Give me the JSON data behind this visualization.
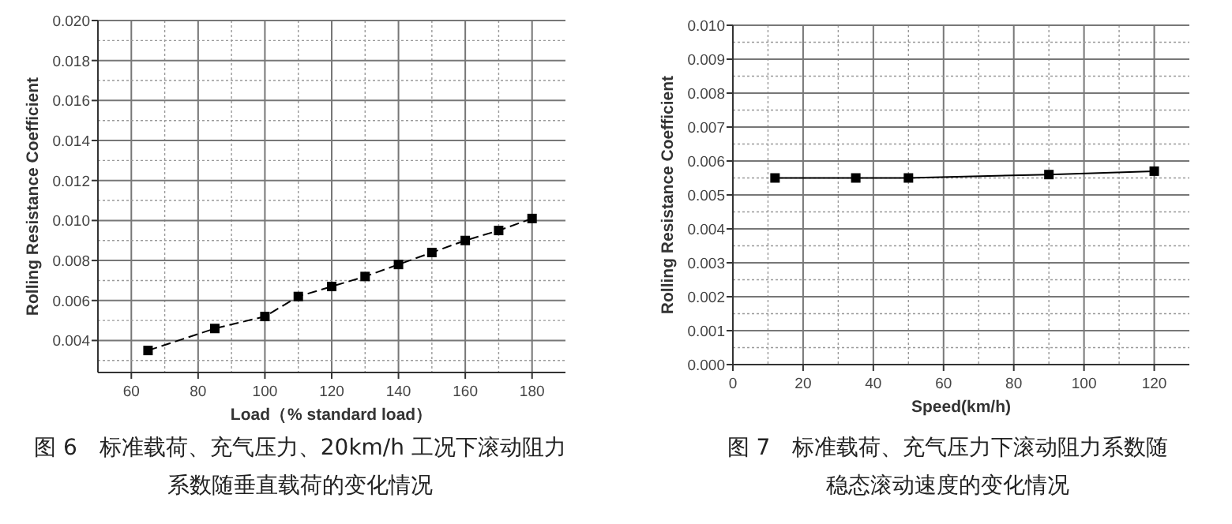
{
  "chart_data": [
    {
      "type": "line",
      "title": "图 6　标准载荷、充气压力、20km/h 工况下滚动阻力系数随垂直载荷的变化情况",
      "xlabel": "Load（% standard load）",
      "ylabel": "Rolling Resistance Coefficient",
      "x": [
        65,
        85,
        100,
        110,
        120,
        130,
        140,
        150,
        160,
        170,
        180
      ],
      "series": [
        {
          "color": "#000000",
          "values": [
            0.0035,
            0.0046,
            0.0052,
            0.0062,
            0.0067,
            0.0072,
            0.0078,
            0.0084,
            0.009,
            0.0095,
            0.0101
          ]
        }
      ],
      "xlim": [
        50,
        190
      ],
      "xticks": [
        60,
        80,
        100,
        120,
        140,
        160,
        180
      ],
      "ylim": [
        0.0024,
        0.02
      ],
      "yticks": [
        {
          "value": 0.004,
          "label": "0.004"
        },
        {
          "value": 0.006,
          "label": "0.006"
        },
        {
          "value": 0.008,
          "label": "0.008"
        },
        {
          "value": 0.01,
          "label": "0.010"
        },
        {
          "value": 0.012,
          "label": "0.012"
        },
        {
          "value": 0.014,
          "label": "0.014"
        },
        {
          "value": 0.016,
          "label": "0.016"
        },
        {
          "value": 0.018,
          "label": "0.018"
        },
        {
          "value": 0.02,
          "label": "0.020"
        }
      ],
      "grid": true,
      "marker": "square",
      "line_style": "dashed"
    },
    {
      "type": "line",
      "title": "图 7　标准载荷、充气压力下滚动阻力系数随稳态滚动速度的变化情况",
      "xlabel": "Speed(km/h)",
      "ylabel": "Rolling Resistance Coefficient",
      "x": [
        12,
        35,
        50,
        90,
        120
      ],
      "series": [
        {
          "color": "#000000",
          "values": [
            0.0055,
            0.0055,
            0.0055,
            0.0056,
            0.0057
          ]
        }
      ],
      "xlim": [
        0,
        130
      ],
      "xticks": [
        0,
        20,
        40,
        60,
        80,
        100,
        120
      ],
      "ylim": [
        0,
        0.01
      ],
      "yticks": [
        {
          "value": 0,
          "label": "0.000"
        },
        {
          "value": 0.001,
          "label": "0.001"
        },
        {
          "value": 0.002,
          "label": "0.002"
        },
        {
          "value": 0.003,
          "label": "0.003"
        },
        {
          "value": 0.004,
          "label": "0.004"
        },
        {
          "value": 0.005,
          "label": "0.005"
        },
        {
          "value": 0.006,
          "label": "0.006"
        },
        {
          "value": 0.007,
          "label": "0.007"
        },
        {
          "value": 0.008,
          "label": "0.008"
        },
        {
          "value": 0.009,
          "label": "0.009"
        },
        {
          "value": 0.01,
          "label": "0.010"
        }
      ],
      "grid": true,
      "marker": "square",
      "line_style": "solid"
    }
  ]
}
